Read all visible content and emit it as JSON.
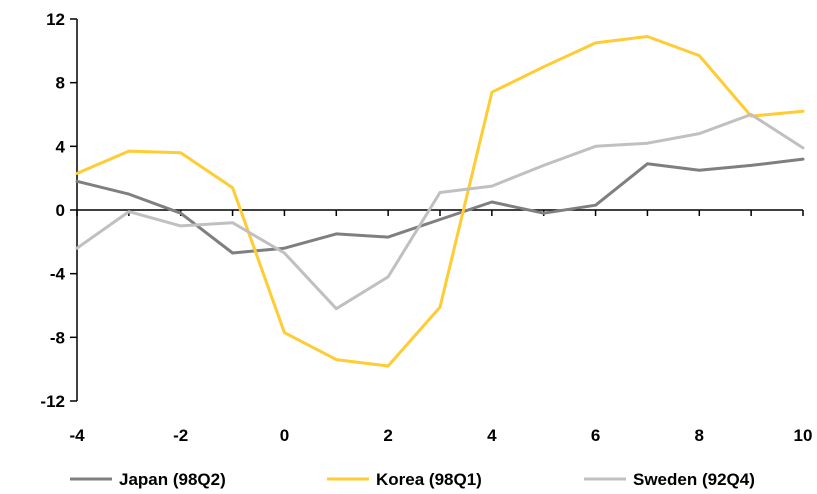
{
  "chart_data": {
    "type": "line",
    "x": [
      -4,
      -3,
      -2,
      -1,
      0,
      1,
      2,
      3,
      4,
      5,
      6,
      7,
      8,
      9,
      10
    ],
    "xlim": [
      -4,
      10
    ],
    "ylim": [
      -12,
      12
    ],
    "x_ticks": [
      -4,
      -2,
      0,
      2,
      4,
      6,
      8,
      10
    ],
    "x_tick_labels": [
      "-4",
      "-2",
      "0",
      "2",
      "4",
      "6",
      "8",
      "10"
    ],
    "y_ticks": [
      12,
      8,
      4,
      0,
      -4,
      -8,
      -12
    ],
    "y_tick_labels": [
      "12",
      "8",
      "4",
      "0",
      "-4",
      "-8",
      "-12"
    ],
    "grid": false,
    "legend_position": "bottom",
    "series": [
      {
        "name": "Japan (98Q2)",
        "color": "#7f7f7f",
        "values": [
          1.8,
          1.0,
          -0.2,
          -2.7,
          -2.4,
          -1.5,
          -1.7,
          -0.6,
          0.5,
          -0.2,
          0.3,
          2.9,
          2.5,
          2.8,
          3.2
        ]
      },
      {
        "name": "Korea (98Q1)",
        "color": "#ffcc33",
        "values": [
          2.3,
          3.7,
          3.6,
          1.4,
          -7.7,
          -9.4,
          -9.8,
          -6.1,
          7.4,
          9.0,
          10.5,
          10.9,
          9.7,
          5.9,
          6.2
        ]
      },
      {
        "name": "Sweden (92Q4)",
        "color": "#c0c0c0",
        "values": [
          -2.4,
          -0.1,
          -1.0,
          -0.8,
          -2.7,
          -6.2,
          -4.2,
          1.1,
          1.5,
          2.8,
          4.0,
          4.2,
          4.8,
          6.0,
          3.9
        ]
      }
    ]
  }
}
